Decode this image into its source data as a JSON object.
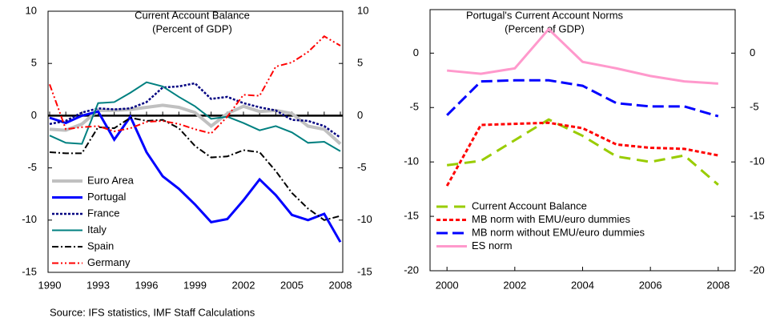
{
  "chart_data": [
    {
      "type": "line",
      "title": "Current Account Balance",
      "subtitle": "(Percent of GDP)",
      "x": [
        1990,
        1991,
        1992,
        1993,
        1994,
        1995,
        1996,
        1997,
        1998,
        1999,
        2000,
        2001,
        2002,
        2003,
        2004,
        2005,
        2006,
        2007,
        2008
      ],
      "xlim": [
        1990,
        2008
      ],
      "xticks": [
        1990,
        1993,
        1996,
        1999,
        2002,
        2005,
        2008
      ],
      "ylim": [
        -15,
        10
      ],
      "yticks": [
        -15,
        -10,
        -5,
        0,
        5,
        10
      ],
      "y2lim": [
        -15,
        10
      ],
      "y2ticks": [
        -15,
        -10,
        -5,
        0,
        5,
        10
      ],
      "legend": "lower left",
      "series": [
        {
          "name": "Euro Area",
          "color": "#c0c0c0",
          "width": 4,
          "dash": "none",
          "values": [
            -1.3,
            -1.4,
            -0.8,
            0.5,
            0.5,
            0.6,
            0.8,
            1.0,
            0.8,
            0.3,
            -1.0,
            0.2,
            0.9,
            0.4,
            0.5,
            0.2,
            -1.0,
            -1.3,
            -2.7
          ]
        },
        {
          "name": "Portugal",
          "color": "#0000ff",
          "width": 3,
          "dash": "none",
          "values": [
            -0.2,
            -0.7,
            0,
            0.4,
            -2.3,
            -0.1,
            -3.5,
            -5.8,
            -7.0,
            -8.5,
            -10.2,
            -9.9,
            -8.1,
            -6.1,
            -7.6,
            -9.5,
            -10.0,
            -9.4,
            -12.1
          ]
        },
        {
          "name": "France",
          "color": "#000080",
          "width": 2.5,
          "dash": "3,2",
          "values": [
            -0.8,
            -0.5,
            0.3,
            0.7,
            0.6,
            0.7,
            1.3,
            2.7,
            2.8,
            3.1,
            1.6,
            1.8,
            1.2,
            0.8,
            0.5,
            -0.4,
            -0.5,
            -1.0,
            -2.1
          ]
        },
        {
          "name": "Italy",
          "color": "#008080",
          "width": 2,
          "dash": "none",
          "values": [
            -1.9,
            -2.6,
            -2.7,
            1.2,
            1.3,
            2.2,
            3.2,
            2.8,
            1.8,
            0.9,
            -0.3,
            -0.1,
            -0.7,
            -1.4,
            -1.0,
            -1.6,
            -2.6,
            -2.5,
            -3.4
          ]
        },
        {
          "name": "Spain",
          "color": "#000000",
          "width": 2,
          "dash": "8,3,2,3",
          "values": [
            -3.5,
            -3.6,
            -3.6,
            -1.1,
            -1.2,
            -0.2,
            -0.5,
            -0.4,
            -1.2,
            -2.9,
            -4.0,
            -3.9,
            -3.3,
            -3.5,
            -5.3,
            -7.4,
            -8.9,
            -10.0,
            -9.6
          ]
        },
        {
          "name": "Germany",
          "color": "#ff0000",
          "width": 2,
          "dash": "8,3,2,3,2,3",
          "values": [
            3.0,
            -1.3,
            -1.1,
            -1.0,
            -1.5,
            -1.2,
            -0.6,
            -0.5,
            -0.8,
            -1.3,
            -1.7,
            -0.1,
            2.0,
            1.9,
            4.7,
            5.1,
            6.1,
            7.6,
            6.7
          ]
        }
      ]
    },
    {
      "type": "line",
      "title": "Portugal's Current Account Norms",
      "subtitle": "(Percent of GDP)",
      "x": [
        2000,
        2001,
        2002,
        2003,
        2004,
        2005,
        2006,
        2007,
        2008
      ],
      "xlim": [
        1999.5,
        2008.5
      ],
      "xticks": [
        2000,
        2002,
        2004,
        2006,
        2008
      ],
      "ylim": [
        -20,
        4
      ],
      "yticks": [
        -20,
        -15,
        -10,
        -5,
        0
      ],
      "y2lim": [
        -20,
        4
      ],
      "y2ticks": [
        -20,
        -15,
        -10,
        -5,
        0
      ],
      "legend": "lower left",
      "series": [
        {
          "name": "Current Account Balance",
          "color": "#99cc00",
          "width": 3,
          "dash": "14,8",
          "values": [
            -10.3,
            -9.9,
            -8.0,
            -6.1,
            -7.6,
            -9.5,
            -10.0,
            -9.4,
            -12.1
          ]
        },
        {
          "name": "MB norm with EMU/euro dummies",
          "color": "#ff0000",
          "width": 3,
          "dash": "5,3",
          "values": [
            -12.2,
            -6.6,
            -6.5,
            -6.4,
            -6.9,
            -8.4,
            -8.7,
            -8.8,
            -9.4
          ]
        },
        {
          "name": "MB norm without EMU/euro dummies",
          "color": "#0000ff",
          "width": 3,
          "dash": "14,6",
          "values": [
            -5.7,
            -2.6,
            -2.5,
            -2.5,
            -3.0,
            -4.6,
            -4.9,
            -4.9,
            -5.8
          ]
        },
        {
          "name": "ES norm",
          "color": "#ff99cc",
          "width": 3,
          "dash": "none",
          "values": [
            -1.6,
            -1.9,
            -1.4,
            2.2,
            -0.8,
            -1.4,
            -2.1,
            -2.6,
            -2.8
          ]
        }
      ]
    }
  ],
  "source": "Source: IFS statistics, IMF Staff Calculations"
}
